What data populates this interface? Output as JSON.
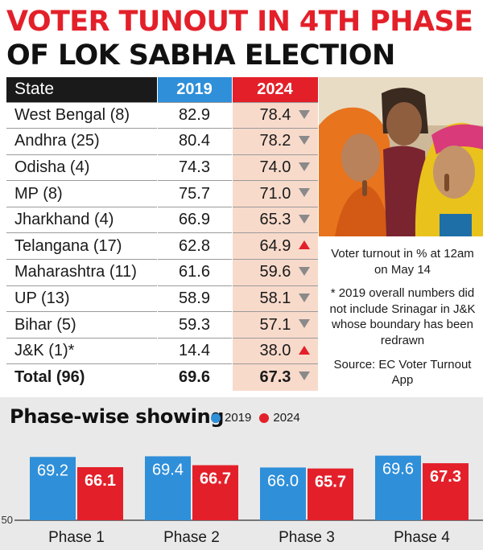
{
  "headline": {
    "line1": "VOTER TUNOUT IN 4TH PHASE",
    "line2": "OF LOK SABHA ELECTION"
  },
  "table": {
    "headers": {
      "state": "State",
      "y2019": "2019",
      "y2024": "2024"
    },
    "rows": [
      {
        "state": "West Bengal (8)",
        "v2019": "82.9",
        "v2024": "78.4",
        "trend": "down"
      },
      {
        "state": "Andhra (25)",
        "v2019": "80.4",
        "v2024": "78.2",
        "trend": "down"
      },
      {
        "state": "Odisha (4)",
        "v2019": "74.3",
        "v2024": "74.0",
        "trend": "down"
      },
      {
        "state": "MP (8)",
        "v2019": "75.7",
        "v2024": "71.0",
        "trend": "down"
      },
      {
        "state": "Jharkhand (4)",
        "v2019": "66.9",
        "v2024": "65.3",
        "trend": "down"
      },
      {
        "state": "Telangana (17)",
        "v2019": "62.8",
        "v2024": "64.9",
        "trend": "up"
      },
      {
        "state": "Maharashtra (11)",
        "v2019": "61.6",
        "v2024": "59.6",
        "trend": "down"
      },
      {
        "state": "UP (13)",
        "v2019": "58.9",
        "v2024": "58.1",
        "trend": "down"
      },
      {
        "state": "Bihar (5)",
        "v2019": "59.3",
        "v2024": "57.1",
        "trend": "down"
      },
      {
        "state": "J&K (1)*",
        "v2019": "14.4",
        "v2024": "38.0",
        "trend": "up"
      }
    ],
    "total": {
      "state": "Total (96)",
      "v2019": "69.6",
      "v2024": "67.3",
      "trend": "down"
    }
  },
  "notes": {
    "turnout": "Voter turnout in % at 12am on May 14",
    "footnote": "* 2019 overall numbers did not include Srinagar in J&K whose boundary has been redrawn",
    "source": "Source: EC Voter Turnout App"
  },
  "colors": {
    "y2019": "#2f8fd9",
    "y2024": "#e3202a",
    "headline_red": "#e3202a"
  },
  "chart_data": {
    "type": "bar",
    "title": "Phase-wise showing",
    "categories": [
      "Phase 1",
      "Phase 2",
      "Phase 3",
      "Phase 4"
    ],
    "series": [
      {
        "name": "2019",
        "values": [
          69.2,
          69.4,
          66.0,
          69.6
        ]
      },
      {
        "name": "2024",
        "values": [
          66.1,
          66.7,
          65.7,
          67.3
        ]
      }
    ],
    "ylim": [
      50,
      71
    ],
    "yticks": [
      "50"
    ],
    "legend_position": "top",
    "grid": false
  }
}
